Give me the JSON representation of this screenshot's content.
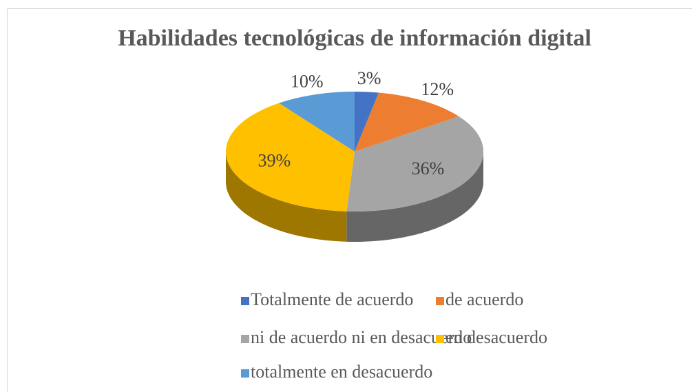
{
  "chart_data": {
    "type": "pie",
    "title": "Habilidades tecnológicas de información digital",
    "categories": [
      "Totalmente de acuerdo",
      "de acuerdo",
      "ni de acuerdo ni en desacuerdo",
      "en desacuerdo",
      "totalmente en desacuerdo"
    ],
    "values": [
      3,
      12,
      36,
      39,
      10
    ],
    "value_labels": [
      "3%",
      "12%",
      "36%",
      "39%",
      "10%"
    ],
    "colors": [
      "#4472c4",
      "#ed7d31",
      "#a5a5a5",
      "#ffc000",
      "#5b9bd5"
    ],
    "legend": "bottom"
  }
}
